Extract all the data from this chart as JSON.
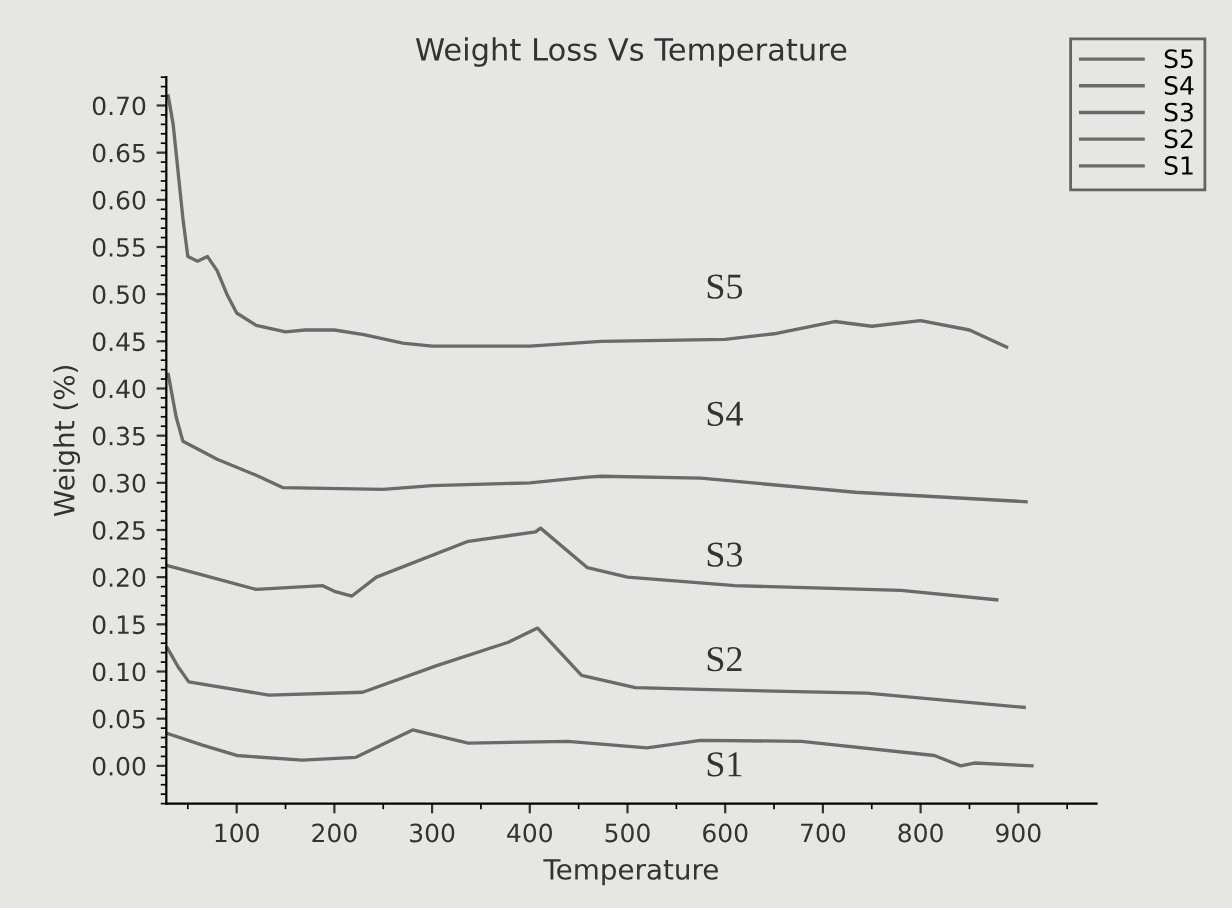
{
  "chart_data": {
    "type": "line",
    "title": "Weight Loss Vs Temperature",
    "xlabel": "Temperature",
    "ylabel": "Weight (%)",
    "xlim": [
      28,
      980
    ],
    "ylim": [
      -0.04,
      0.73
    ],
    "xticks": [
      100,
      200,
      300,
      400,
      500,
      600,
      700,
      800,
      900
    ],
    "yticks": [
      {
        "value": 0,
        "label": "0.00"
      },
      0.05,
      {
        "value": 0.1,
        "label": "0.10"
      },
      0.15,
      {
        "value": 0.2,
        "label": "0.20"
      },
      0.25,
      {
        "value": 0.3,
        "label": "0.30"
      },
      0.35,
      {
        "value": 0.4,
        "label": "0.40"
      },
      0.45,
      {
        "value": 0.5,
        "label": "0.50"
      },
      0.55,
      {
        "value": 0.6,
        "label": "0.60"
      },
      0.65,
      {
        "value": 0.7,
        "label": "0.70"
      }
    ],
    "grid": false,
    "legend": "top right",
    "line_style": "solid",
    "annotations": [
      "S5",
      "S4",
      "S3",
      "S2",
      "S1"
    ],
    "series": [
      {
        "name": "S5",
        "color": "#6a6a6a",
        "x": [
          30,
          35,
          45,
          50,
          60,
          70,
          80,
          90,
          100,
          120,
          150,
          170,
          200,
          230,
          270,
          300,
          400,
          473,
          600,
          650,
          712,
          750,
          800,
          850,
          888
        ],
        "values": [
          0.71,
          0.68,
          0.58,
          0.54,
          0.535,
          0.54,
          0.525,
          0.5,
          0.48,
          0.467,
          0.46,
          0.462,
          0.462,
          0.457,
          0.448,
          0.445,
          0.445,
          0.45,
          0.452,
          0.458,
          0.471,
          0.466,
          0.472,
          0.462,
          0.444
        ]
      },
      {
        "name": "S4",
        "color": "#6a6a6a",
        "x": [
          30,
          38,
          45,
          80,
          120,
          147,
          250,
          300,
          400,
          459,
          473,
          575,
          733,
          908
        ],
        "values": [
          0.415,
          0.37,
          0.344,
          0.325,
          0.308,
          0.295,
          0.293,
          0.297,
          0.3,
          0.306,
          0.307,
          0.305,
          0.29,
          0.28
        ]
      },
      {
        "name": "S3",
        "color": "#6a6a6a",
        "x": [
          30,
          59,
          120,
          188,
          200,
          218,
          243,
          337,
          406,
          411,
          459,
          500,
          610,
          780,
          878
        ],
        "values": [
          0.212,
          0.204,
          0.187,
          0.191,
          0.185,
          0.18,
          0.2,
          0.238,
          0.248,
          0.252,
          0.21,
          0.2,
          0.191,
          0.186,
          0.176
        ]
      },
      {
        "name": "S2",
        "color": "#6a6a6a",
        "x": [
          29,
          40,
          51,
          133,
          229,
          304,
          378,
          408,
          453,
          508,
          575,
          745,
          906
        ],
        "values": [
          0.125,
          0.105,
          0.089,
          0.075,
          0.078,
          0.106,
          0.131,
          0.146,
          0.096,
          0.083,
          0.081,
          0.077,
          0.062
        ]
      },
      {
        "name": "S1",
        "color": "#6a6a6a",
        "x": [
          30,
          65,
          100,
          167,
          222,
          280,
          337,
          439,
          520,
          575,
          678,
          814,
          841,
          855,
          914
        ],
        "values": [
          0.034,
          0.022,
          0.011,
          0.006,
          0.009,
          0.038,
          0.024,
          0.026,
          0.019,
          0.027,
          0.026,
          0.011,
          0.0,
          0.003,
          0.0
        ]
      }
    ]
  }
}
